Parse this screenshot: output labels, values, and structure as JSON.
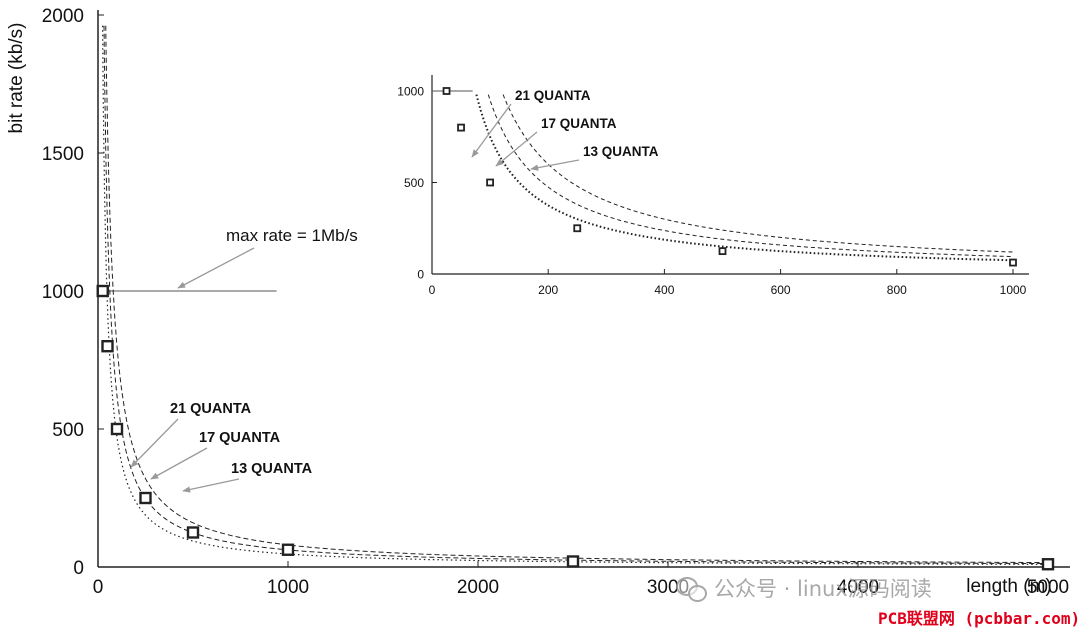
{
  "chart_data": [
    {
      "type": "line",
      "ylabel": "bit rate (kb/s)",
      "xlabel": "length (m)",
      "xlim": [
        0,
        5000
      ],
      "ylim": [
        0,
        2000
      ],
      "x_ticks": [
        0,
        1000,
        2000,
        3000,
        4000,
        5000
      ],
      "y_ticks": [
        0,
        500,
        1000,
        1500,
        2000
      ],
      "grid": false,
      "series": [
        {
          "name": "21 QUANTA",
          "style": "dashed",
          "k": 80000
        },
        {
          "name": "17 QUANTA",
          "style": "dashed",
          "k": 62000
        },
        {
          "name": "13 QUANTA",
          "style": "dotted",
          "k": 47000
        }
      ],
      "max_rate": {
        "label": "max rate = 1Mb/s",
        "value": 1000,
        "x_end": 940
      },
      "points": [
        {
          "x": 25,
          "y": 1000
        },
        {
          "x": 50,
          "y": 800
        },
        {
          "x": 100,
          "y": 500
        },
        {
          "x": 250,
          "y": 250
        },
        {
          "x": 500,
          "y": 125
        },
        {
          "x": 1000,
          "y": 62.5
        },
        {
          "x": 2500,
          "y": 20
        },
        {
          "x": 5000,
          "y": 10
        }
      ]
    },
    {
      "type": "line",
      "role": "inset",
      "xlim": [
        0,
        1000
      ],
      "ylim": [
        0,
        1000
      ],
      "x_ticks": [
        0,
        200,
        400,
        600,
        800,
        1000
      ],
      "y_ticks": [
        0,
        500,
        1000
      ],
      "grid": false,
      "series": [
        {
          "name": "21 QUANTA",
          "style": "dashed",
          "k": 120000
        },
        {
          "name": "17 QUANTA",
          "style": "dashed",
          "k": 95000
        },
        {
          "name": "13 QUANTA",
          "style": "dotted",
          "k": 75000
        }
      ],
      "max_rate": {
        "value": 1000,
        "x_end": 70
      },
      "points": [
        {
          "x": 25,
          "y": 1000
        },
        {
          "x": 50,
          "y": 800
        },
        {
          "x": 100,
          "y": 500
        },
        {
          "x": 250,
          "y": 250
        },
        {
          "x": 500,
          "y": 125
        },
        {
          "x": 1000,
          "y": 62.5
        }
      ]
    }
  ],
  "watermark": {
    "text": "公众号 · linux源码阅读"
  },
  "credit": {
    "text": "PCB联盟网 (pcbbar.com)"
  },
  "colors": {
    "line": "#222222",
    "arrow": "#9a9a9a",
    "credit": "#e0001b"
  }
}
